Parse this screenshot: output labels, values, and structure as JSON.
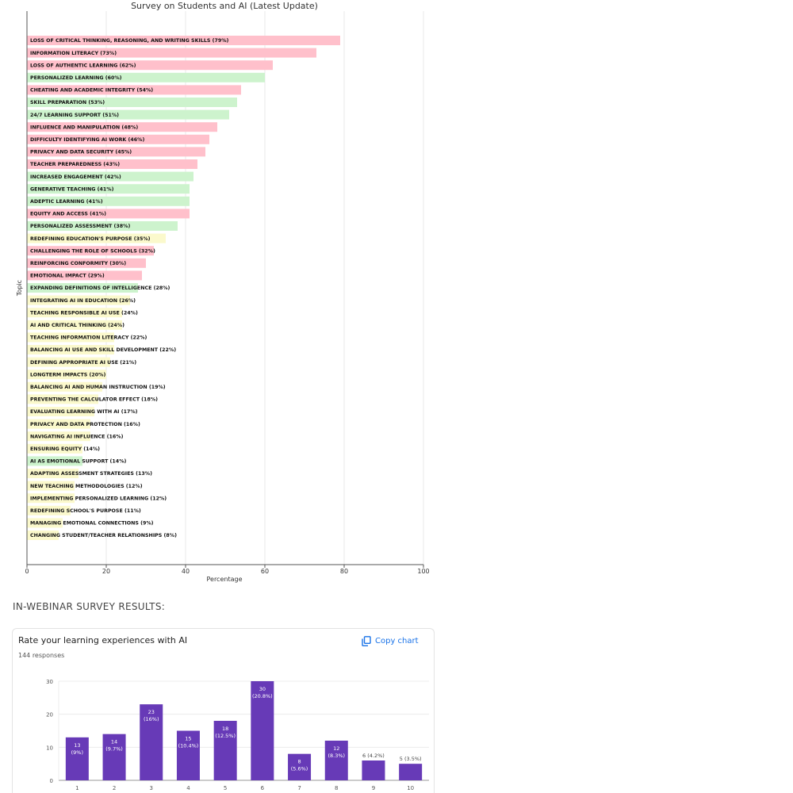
{
  "page": {
    "survey_heading": "IN-WEBINAR SURVEY RESULTS:"
  },
  "chart_data": [
    {
      "type": "bar",
      "orientation": "horizontal",
      "title": "Survey on Students and AI (Latest Update)",
      "xlabel": "Percentage",
      "ylabel": "Topic",
      "xlim": [
        0,
        100
      ],
      "xticks": [
        0,
        20,
        40,
        60,
        80,
        100
      ],
      "grid": true,
      "colors": {
        "pink": "#ffc0cb",
        "green": "#cdf3cd",
        "yellow": "#fbf9cc"
      },
      "bars": [
        {
          "label": "LOSS OF CRITICAL THINKING, REASONING, AND WRITING SKILLS (79%)",
          "value": 79,
          "color": "pink"
        },
        {
          "label": "INFORMATION LITERACY (73%)",
          "value": 73,
          "color": "pink"
        },
        {
          "label": "LOSS OF AUTHENTIC LEARNING (62%)",
          "value": 62,
          "color": "pink"
        },
        {
          "label": "PERSONALIZED LEARNING (60%)",
          "value": 60,
          "color": "green"
        },
        {
          "label": "CHEATING AND ACADEMIC INTEGRITY (54%)",
          "value": 54,
          "color": "pink"
        },
        {
          "label": "SKILL PREPARATION (53%)",
          "value": 53,
          "color": "green"
        },
        {
          "label": "24/7 LEARNING SUPPORT (51%)",
          "value": 51,
          "color": "green"
        },
        {
          "label": "INFLUENCE AND MANIPULATION (48%)",
          "value": 48,
          "color": "pink"
        },
        {
          "label": "DIFFICULTY IDENTIFYING AI WORK (46%)",
          "value": 46,
          "color": "pink"
        },
        {
          "label": "PRIVACY AND DATA SECURITY (45%)",
          "value": 45,
          "color": "pink"
        },
        {
          "label": "TEACHER PREPAREDNESS (43%)",
          "value": 43,
          "color": "pink"
        },
        {
          "label": "INCREASED ENGAGEMENT (42%)",
          "value": 42,
          "color": "green"
        },
        {
          "label": "GENERATIVE TEACHING (41%)",
          "value": 41,
          "color": "green"
        },
        {
          "label": "ADEPTIC LEARNING (41%)",
          "value": 41,
          "color": "green"
        },
        {
          "label": "EQUITY AND ACCESS (41%)",
          "value": 41,
          "color": "pink"
        },
        {
          "label": "PERSONALIZED ASSESSMENT (38%)",
          "value": 38,
          "color": "green"
        },
        {
          "label": "REDEFINING EDUCATION'S PURPOSE (35%)",
          "value": 35,
          "color": "yellow"
        },
        {
          "label": "CHALLENGING THE ROLE OF SCHOOLS (32%)",
          "value": 32,
          "color": "pink"
        },
        {
          "label": "REINFORCING CONFORMITY (30%)",
          "value": 30,
          "color": "pink"
        },
        {
          "label": "EMOTIONAL IMPACT (29%)",
          "value": 29,
          "color": "pink"
        },
        {
          "label": "EXPANDING DEFINITIONS OF INTELLIGENCE (28%)",
          "value": 28,
          "color": "green"
        },
        {
          "label": "INTEGRATING AI IN EDUCATION (26%)",
          "value": 26,
          "color": "yellow"
        },
        {
          "label": "TEACHING RESPONSIBLE AI USE (24%)",
          "value": 24,
          "color": "yellow"
        },
        {
          "label": "AI AND CRITICAL THINKING (24%)",
          "value": 24,
          "color": "yellow"
        },
        {
          "label": "TEACHING INFORMATION LITERACY (22%)",
          "value": 22,
          "color": "yellow"
        },
        {
          "label": "BALANCING AI USE AND SKILL DEVELOPMENT (22%)",
          "value": 22,
          "color": "yellow"
        },
        {
          "label": "DEFINING APPROPRIATE AI USE (21%)",
          "value": 21,
          "color": "yellow"
        },
        {
          "label": "LONGTERM IMPACTS (20%)",
          "value": 20,
          "color": "yellow"
        },
        {
          "label": "BALANCING AI AND HUMAN INSTRUCTION (19%)",
          "value": 19,
          "color": "yellow"
        },
        {
          "label": "PREVENTING THE CALCULATOR EFFECT (18%)",
          "value": 18,
          "color": "yellow"
        },
        {
          "label": "EVALUATING LEARNING WITH AI (17%)",
          "value": 17,
          "color": "yellow"
        },
        {
          "label": "PRIVACY AND DATA PROTECTION (16%)",
          "value": 16,
          "color": "yellow"
        },
        {
          "label": "NAVIGATING AI INFLUENCE (16%)",
          "value": 16,
          "color": "yellow"
        },
        {
          "label": "ENSURING EQUITY (14%)",
          "value": 14,
          "color": "yellow"
        },
        {
          "label": "AI AS EMOTIONAL SUPPORT (14%)",
          "value": 14,
          "color": "green"
        },
        {
          "label": "ADAPTING ASSESSMENT STRATEGIES (13%)",
          "value": 13,
          "color": "yellow"
        },
        {
          "label": "NEW TEACHING METHODOLOGIES (12%)",
          "value": 12,
          "color": "yellow"
        },
        {
          "label": "IMPLEMENTING PERSONALIZED LEARNING (12%)",
          "value": 12,
          "color": "yellow"
        },
        {
          "label": "REDEFINING SCHOOL'S PURPOSE (11%)",
          "value": 11,
          "color": "yellow"
        },
        {
          "label": "MANAGING EMOTIONAL CONNECTIONS (9%)",
          "value": 9,
          "color": "yellow"
        },
        {
          "label": "CHANGING STUDENT/TEACHER RELATIONSHIPS (8%)",
          "value": 8,
          "color": "yellow"
        }
      ]
    },
    {
      "type": "bar",
      "title": "Rate your learning experiences with AI",
      "subtitle": "144 responses",
      "copy_label": "Copy chart",
      "color": "#673ab7",
      "ylim": [
        0,
        30
      ],
      "yticks": [
        0,
        10,
        20,
        30
      ],
      "grid": true,
      "categories": [
        "1",
        "2",
        "3",
        "4",
        "5",
        "6",
        "7",
        "8",
        "9",
        "10"
      ],
      "values": [
        13,
        14,
        23,
        15,
        18,
        30,
        8,
        12,
        6,
        5
      ],
      "data_labels": [
        "13 (9%)",
        "14 (9.7%)",
        "23 (16%)",
        "15 (10.4%)",
        "18 (12.5%)",
        "30 (20.8%)",
        "8 (5.6%)",
        "12 (8.3%)",
        "6 (4.2%)",
        "5 (3.5%)"
      ]
    }
  ]
}
